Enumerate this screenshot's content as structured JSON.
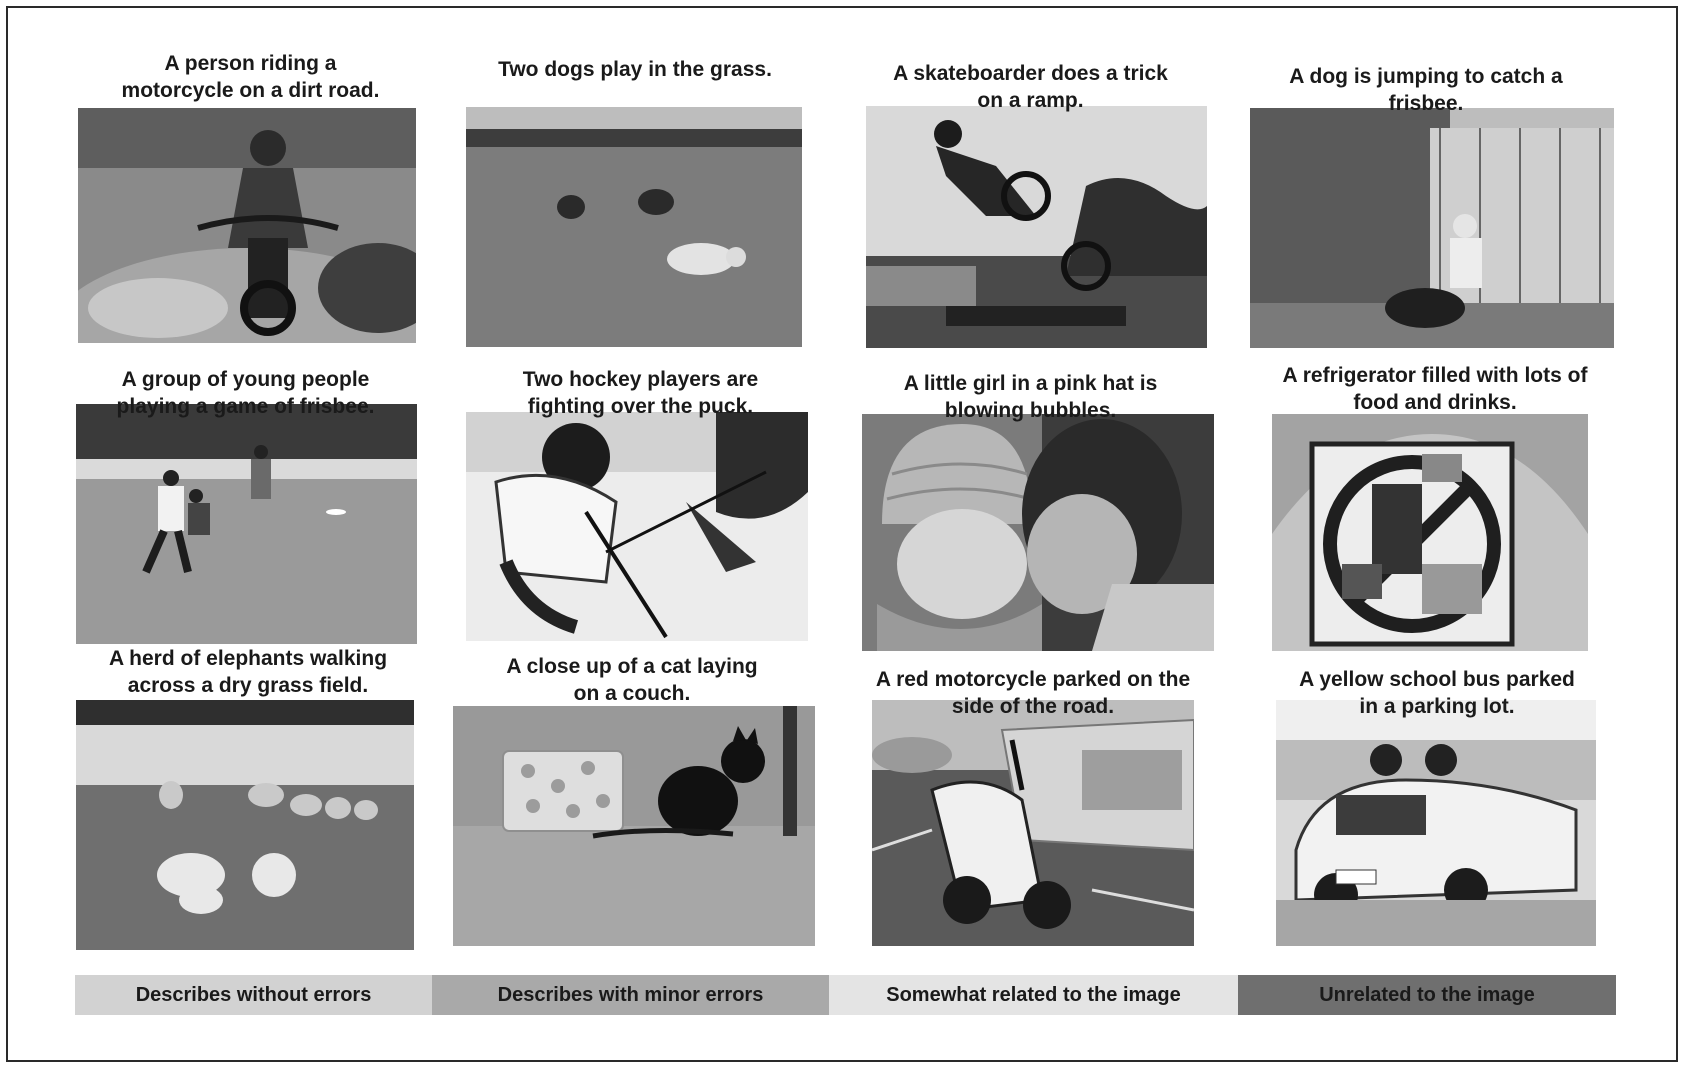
{
  "captions": [
    {
      "line1": "A person riding a",
      "line2": "motorcycle on a dirt road."
    },
    {
      "line1": "Two dogs play in the grass.",
      "line2": ""
    },
    {
      "line1": "A skateboarder does a trick",
      "line2": "on a ramp."
    },
    {
      "line1": "A dog is jumping to catch a",
      "line2": "frisbee."
    },
    {
      "line1": "A group of young people",
      "line2": "playing a game of frisbee."
    },
    {
      "line1": "Two hockey players are",
      "line2": "fighting over the puck."
    },
    {
      "line1": "A little girl in a pink hat is",
      "line2": "blowing bubbles."
    },
    {
      "line1": "A refrigerator filled with lots of",
      "line2": "food and drinks."
    },
    {
      "line1": "A herd of elephants walking",
      "line2": "across a dry grass field."
    },
    {
      "line1": "A close up of a cat laying",
      "line2": "on a couch."
    },
    {
      "line1": "A red motorcycle parked on the",
      "line2": "side of the road."
    },
    {
      "line1": "A yellow school bus parked",
      "line2": "in a parking lot."
    }
  ],
  "legend": [
    {
      "label": "Describes without errors",
      "color": "#d2d2d2"
    },
    {
      "label": "Describes with minor errors",
      "color": "#a9a9a9"
    },
    {
      "label": "Somewhat related to the image",
      "color": "#e4e4e4"
    },
    {
      "label": "Unrelated to the image",
      "color": "#6f6f6f"
    }
  ]
}
